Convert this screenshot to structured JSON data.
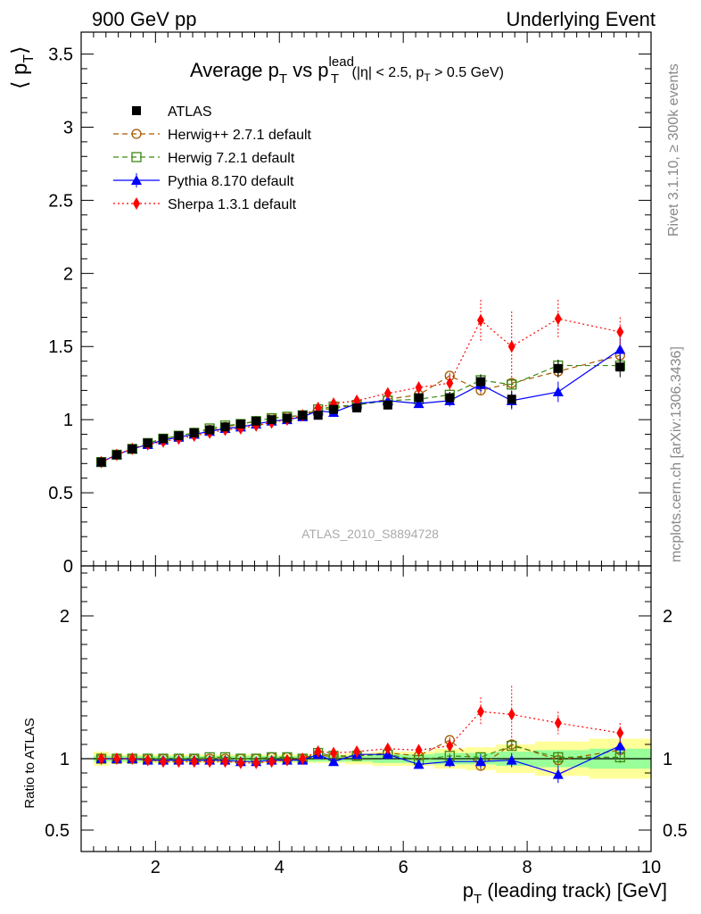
{
  "header": {
    "left": "900 GeV pp",
    "right": "Underlying Event"
  },
  "side_labels": {
    "rivet": "Rivet 3.1.10, ≥ 300k events",
    "mcplots": "mcplots.cern.ch [arXiv:1306.3436]"
  },
  "main_panel": {
    "title_main": "Average p",
    "title_sub_t": "T",
    "title_vs": " vs p",
    "title_sup": "lead",
    "title_sub2": "T",
    "title_cuts": " (|η| < 2.5, p",
    "title_cuts_sub": "T",
    "title_cuts_end": " > 0.5 GeV)",
    "ylabel": "⟨ p",
    "ylabel_sub": "T",
    "ylabel_end": "⟩",
    "watermark": "ATLAS_2010_S8894728",
    "yticks": [
      "0",
      "0.5",
      "1",
      "1.5",
      "2",
      "2.5",
      "3",
      "3.5"
    ]
  },
  "ratio_panel": {
    "ylabel": "Ratio to ATLAS",
    "yticks": [
      "0.5",
      "1",
      "2"
    ]
  },
  "xaxis": {
    "label": "p",
    "label_sub": "T",
    "label_end": " (leading track) [GeV]",
    "ticks": [
      "2",
      "4",
      "6",
      "8",
      "10"
    ]
  },
  "chart_data": {
    "type": "scatter",
    "xlim": [
      0.8,
      10
    ],
    "ylim_main": [
      0,
      3.65
    ],
    "ylim_ratio": [
      0.35,
      2.35
    ],
    "x": [
      1.125,
      1.375,
      1.625,
      1.875,
      2.125,
      2.375,
      2.625,
      2.875,
      3.125,
      3.375,
      3.625,
      3.875,
      4.125,
      4.375,
      4.625,
      4.875,
      5.25,
      5.75,
      6.25,
      6.75,
      7.25,
      7.75,
      8.5,
      9.5
    ],
    "legend": {
      "position": "top-left",
      "entries": [
        "ATLAS",
        "Herwig++ 2.7.1 default",
        "Herwig 7.2.1 default",
        "Pythia 8.170 default",
        "Sherpa 1.3.1 default"
      ]
    },
    "series": [
      {
        "name": "ATLAS",
        "color": "#000000",
        "marker": "filled-square",
        "line": "none",
        "values": [
          0.71,
          0.76,
          0.8,
          0.84,
          0.87,
          0.89,
          0.91,
          0.93,
          0.95,
          0.97,
          0.99,
          1.0,
          1.01,
          1.03,
          1.03,
          1.07,
          1.08,
          1.1,
          1.15,
          1.15,
          1.26,
          1.14,
          1.35,
          1.36
        ],
        "errors": [
          0.01,
          0.01,
          0.01,
          0.01,
          0.01,
          0.01,
          0.01,
          0.01,
          0.01,
          0.01,
          0.01,
          0.01,
          0.01,
          0.01,
          0.01,
          0.02,
          0.02,
          0.03,
          0.03,
          0.04,
          0.05,
          0.06,
          0.06,
          0.07
        ],
        "ratio_band_inner": [
          0.02,
          0.02,
          0.02,
          0.02,
          0.02,
          0.02,
          0.02,
          0.02,
          0.02,
          0.02,
          0.02,
          0.02,
          0.02,
          0.02,
          0.02,
          0.02,
          0.02,
          0.03,
          0.03,
          0.04,
          0.04,
          0.05,
          0.06,
          0.07
        ],
        "ratio_band_outer": [
          0.05,
          0.03,
          0.03,
          0.03,
          0.03,
          0.03,
          0.03,
          0.03,
          0.03,
          0.03,
          0.03,
          0.03,
          0.03,
          0.03,
          0.03,
          0.03,
          0.04,
          0.05,
          0.05,
          0.07,
          0.08,
          0.1,
          0.12,
          0.14
        ]
      },
      {
        "name": "Herwig++ 2.7.1 default",
        "color": "#a65a00",
        "marker": "open-circle",
        "line": "dashed",
        "values": [
          0.71,
          0.76,
          0.8,
          0.84,
          0.87,
          0.89,
          0.91,
          0.93,
          0.95,
          0.97,
          0.99,
          1.01,
          1.02,
          1.03,
          1.06,
          1.08,
          1.1,
          1.14,
          1.17,
          1.3,
          1.2,
          1.25,
          1.33,
          1.44
        ],
        "errors": [
          0.01,
          0.01,
          0.01,
          0.01,
          0.01,
          0.01,
          0.01,
          0.01,
          0.01,
          0.01,
          0.01,
          0.01,
          0.01,
          0.01,
          0.01,
          0.01,
          0.01,
          0.02,
          0.02,
          0.02,
          0.03,
          0.03,
          0.04,
          0.04
        ],
        "ratio": [
          1.0,
          1.0,
          1.0,
          1.0,
          1.0,
          1.0,
          1.0,
          1.0,
          1.0,
          1.0,
          1.0,
          1.01,
          1.01,
          1.0,
          1.03,
          1.01,
          1.02,
          1.04,
          1.02,
          1.13,
          0.95,
          1.1,
          0.99,
          1.06
        ],
        "ratio_errors": [
          0.01,
          0.01,
          0.01,
          0.01,
          0.01,
          0.01,
          0.01,
          0.01,
          0.01,
          0.01,
          0.01,
          0.01,
          0.01,
          0.01,
          0.01,
          0.01,
          0.01,
          0.02,
          0.02,
          0.02,
          0.03,
          0.03,
          0.04,
          0.04
        ]
      },
      {
        "name": "Herwig 7.2.1 default",
        "color": "#3a8a10",
        "marker": "open-square",
        "line": "dashed",
        "values": [
          0.71,
          0.76,
          0.8,
          0.84,
          0.87,
          0.89,
          0.91,
          0.94,
          0.96,
          0.97,
          0.99,
          1.01,
          1.02,
          1.03,
          1.07,
          1.09,
          1.1,
          1.13,
          1.14,
          1.17,
          1.27,
          1.24,
          1.37,
          1.37
        ],
        "errors": [
          0.01,
          0.01,
          0.01,
          0.01,
          0.01,
          0.01,
          0.01,
          0.01,
          0.01,
          0.01,
          0.01,
          0.01,
          0.01,
          0.01,
          0.01,
          0.01,
          0.01,
          0.02,
          0.02,
          0.02,
          0.03,
          0.03,
          0.04,
          0.04
        ],
        "ratio": [
          1.0,
          1.0,
          1.0,
          1.0,
          1.0,
          1.0,
          1.0,
          1.01,
          1.01,
          1.0,
          1.0,
          1.01,
          1.01,
          1.0,
          1.04,
          1.02,
          1.02,
          1.03,
          0.99,
          1.02,
          1.01,
          1.09,
          1.01,
          1.01
        ],
        "ratio_errors": [
          0.01,
          0.01,
          0.01,
          0.01,
          0.01,
          0.01,
          0.01,
          0.01,
          0.01,
          0.01,
          0.01,
          0.01,
          0.01,
          0.01,
          0.01,
          0.01,
          0.01,
          0.02,
          0.02,
          0.02,
          0.03,
          0.03,
          0.04,
          0.04
        ]
      },
      {
        "name": "Pythia 8.170 default",
        "color": "#0000ff",
        "marker": "filled-triangle",
        "line": "solid",
        "values": [
          0.71,
          0.76,
          0.8,
          0.83,
          0.86,
          0.88,
          0.9,
          0.92,
          0.94,
          0.95,
          0.97,
          0.99,
          1.0,
          1.02,
          1.06,
          1.05,
          1.11,
          1.13,
          1.11,
          1.13,
          1.24,
          1.13,
          1.19,
          1.48
        ],
        "errors": [
          0.01,
          0.01,
          0.01,
          0.01,
          0.01,
          0.01,
          0.01,
          0.01,
          0.01,
          0.01,
          0.01,
          0.01,
          0.01,
          0.01,
          0.01,
          0.02,
          0.02,
          0.03,
          0.03,
          0.04,
          0.05,
          0.06,
          0.07,
          0.08
        ],
        "ratio": [
          1.0,
          1.0,
          1.0,
          0.99,
          0.99,
          0.99,
          0.99,
          0.99,
          0.99,
          0.98,
          0.98,
          0.99,
          0.99,
          0.99,
          1.03,
          0.98,
          1.03,
          1.03,
          0.96,
          0.98,
          0.98,
          0.99,
          0.89,
          1.09
        ],
        "ratio_errors": [
          0.01,
          0.01,
          0.01,
          0.01,
          0.01,
          0.01,
          0.01,
          0.01,
          0.01,
          0.01,
          0.01,
          0.01,
          0.01,
          0.01,
          0.02,
          0.02,
          0.02,
          0.03,
          0.03,
          0.04,
          0.05,
          0.05,
          0.06,
          0.06
        ]
      },
      {
        "name": "Sherpa 1.3.1 default",
        "color": "#ff0000",
        "marker": "filled-diamond",
        "line": "dotted",
        "values": [
          0.71,
          0.76,
          0.8,
          0.83,
          0.85,
          0.87,
          0.89,
          0.91,
          0.93,
          0.94,
          0.96,
          0.98,
          1.0,
          1.03,
          1.08,
          1.11,
          1.13,
          1.18,
          1.22,
          1.25,
          1.68,
          1.5,
          1.69,
          1.6
        ],
        "errors": [
          0.01,
          0.01,
          0.01,
          0.01,
          0.01,
          0.01,
          0.01,
          0.01,
          0.01,
          0.01,
          0.01,
          0.01,
          0.01,
          0.01,
          0.02,
          0.02,
          0.02,
          0.03,
          0.04,
          0.06,
          0.14,
          0.24,
          0.13,
          0.1
        ],
        "ratio": [
          1.0,
          1.0,
          1.0,
          0.99,
          0.98,
          0.98,
          0.98,
          0.98,
          0.98,
          0.97,
          0.97,
          0.98,
          0.99,
          1.0,
          1.05,
          1.04,
          1.05,
          1.07,
          1.06,
          1.09,
          1.33,
          1.31,
          1.25,
          1.18
        ],
        "ratio_errors": [
          0.01,
          0.01,
          0.01,
          0.01,
          0.01,
          0.01,
          0.01,
          0.01,
          0.01,
          0.01,
          0.01,
          0.01,
          0.01,
          0.01,
          0.02,
          0.02,
          0.02,
          0.03,
          0.03,
          0.05,
          0.1,
          0.2,
          0.08,
          0.07
        ]
      }
    ]
  }
}
